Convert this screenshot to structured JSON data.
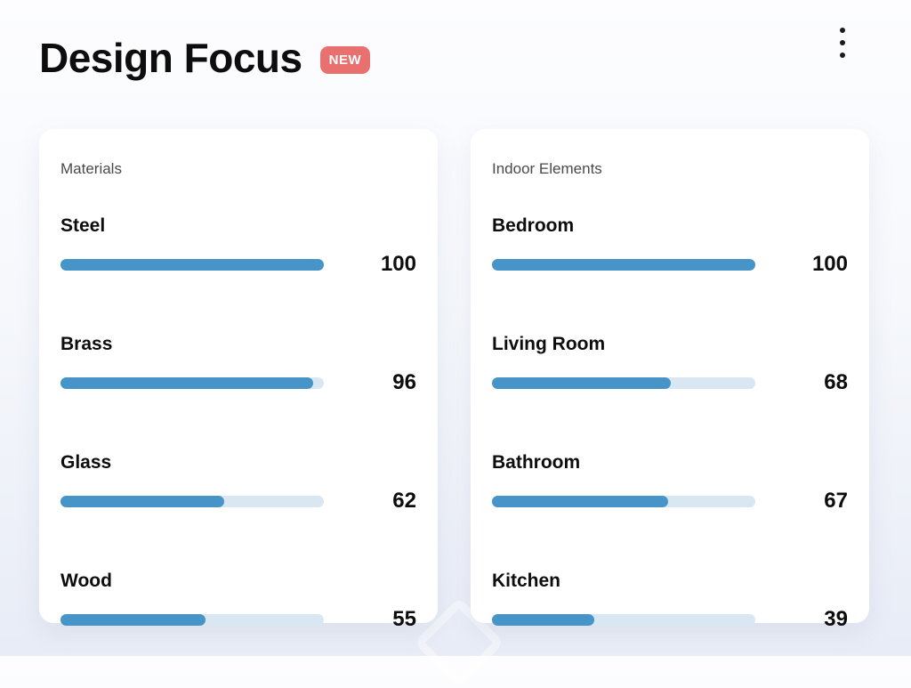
{
  "header": {
    "title": "Design Focus",
    "badge_label": "NEW",
    "menu_icon": "kebab-menu-icon"
  },
  "colors": {
    "badge_bg": "#e8706e",
    "bar_fill": "#4795c8",
    "bar_track": "#d9e7f3",
    "card_bg": "#ffffff",
    "page_top": "#fdfdff",
    "page_bottom": "#e8ecf6",
    "text_primary": "#0d0d0d",
    "text_secondary": "#4a4a4a"
  },
  "chart_data": [
    {
      "type": "bar",
      "orientation": "horizontal",
      "title": "Materials",
      "categories": [
        "Steel",
        "Brass",
        "Glass",
        "Wood"
      ],
      "values": [
        100,
        96,
        62,
        55
      ],
      "xlim": [
        0,
        100
      ],
      "value_labels_shown": true,
      "legend": "none",
      "grid": false
    },
    {
      "type": "bar",
      "orientation": "horizontal",
      "title": "Indoor Elements",
      "categories": [
        "Bedroom",
        "Living Room",
        "Bathroom",
        "Kitchen"
      ],
      "values": [
        100,
        68,
        67,
        39
      ],
      "xlim": [
        0,
        100
      ],
      "value_labels_shown": true,
      "legend": "none",
      "grid": false
    }
  ]
}
